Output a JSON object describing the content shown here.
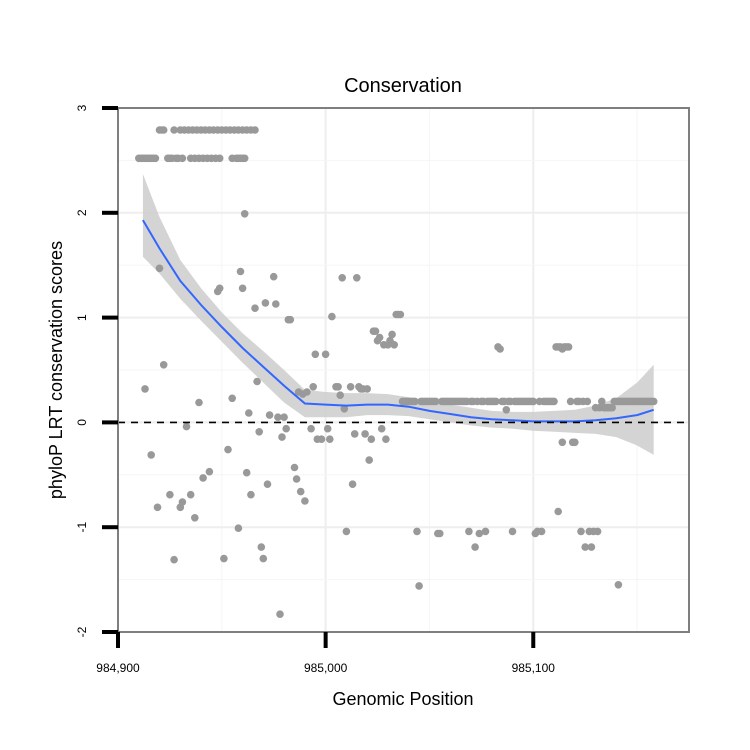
{
  "chart_data": {
    "type": "scatter",
    "title": "Conservation",
    "xlabel": "Genomic Position",
    "ylabel": "phyloP LRT conservation scores",
    "xlim": [
      984900,
      985175
    ],
    "ylim": [
      -2,
      3
    ],
    "x_ticks": [
      984900,
      985000,
      985100
    ],
    "x_tick_labels": [
      "984,900",
      "985,000",
      "985,100"
    ],
    "y_ticks": [
      -2,
      -1,
      0,
      1,
      2,
      3
    ],
    "y_tick_labels": [
      "-2",
      "-1",
      "0",
      "1",
      "2",
      "3"
    ],
    "grid": true,
    "reference_line": {
      "y": 0,
      "style": "dashed"
    },
    "colors": {
      "points": "#999999",
      "smooth_line": "#3366FF",
      "ribbon": "#cccccc",
      "grid_major": "#eeeeee",
      "grid_minor": "#f5f5f5",
      "panel_border": "#7f7f7f",
      "axis_tick": "#000000"
    },
    "series": [
      {
        "name": "points",
        "points": [
          [
            984910,
            2.52
          ],
          [
            984911,
            2.52
          ],
          [
            984912,
            2.52
          ],
          [
            984913,
            2.52
          ],
          [
            984914,
            2.52
          ],
          [
            984915,
            2.52
          ],
          [
            984916,
            2.52
          ],
          [
            984917,
            2.52
          ],
          [
            984918,
            2.52
          ],
          [
            984920,
            2.79
          ],
          [
            984921,
            2.79
          ],
          [
            984922,
            2.79
          ],
          [
            984924,
            2.52
          ],
          [
            984925,
            2.52
          ],
          [
            984926,
            2.52
          ],
          [
            984928,
            2.52
          ],
          [
            984929,
            2.52
          ],
          [
            984931,
            2.52
          ],
          [
            984927,
            2.79
          ],
          [
            984930,
            2.79
          ],
          [
            984932,
            2.79
          ],
          [
            984934,
            2.79
          ],
          [
            984936,
            2.79
          ],
          [
            984938,
            2.79
          ],
          [
            984940,
            2.79
          ],
          [
            984942,
            2.79
          ],
          [
            984935,
            2.52
          ],
          [
            984937,
            2.52
          ],
          [
            984939,
            2.52
          ],
          [
            984941,
            2.52
          ],
          [
            984943,
            2.52
          ],
          [
            984945,
            2.52
          ],
          [
            984947,
            2.52
          ],
          [
            984949,
            2.52
          ],
          [
            984944,
            2.79
          ],
          [
            984946,
            2.79
          ],
          [
            984948,
            2.79
          ],
          [
            984950,
            2.79
          ],
          [
            984952,
            2.79
          ],
          [
            984954,
            2.79
          ],
          [
            984956,
            2.79
          ],
          [
            984958,
            2.79
          ],
          [
            984960,
            2.79
          ],
          [
            984962,
            2.79
          ],
          [
            984964,
            2.79
          ],
          [
            984966,
            2.79
          ],
          [
            984955,
            2.52
          ],
          [
            984957,
            2.52
          ],
          [
            984958,
            2.52
          ],
          [
            984959,
            2.52
          ],
          [
            984960,
            2.52
          ],
          [
            984961,
            2.52
          ],
          [
            984913,
            0.32
          ],
          [
            984916,
            -0.31
          ],
          [
            984919,
            -0.81
          ],
          [
            984920,
            1.47
          ],
          [
            984922,
            0.55
          ],
          [
            984925,
            -0.69
          ],
          [
            984927,
            -1.31
          ],
          [
            984930,
            -0.81
          ],
          [
            984931,
            -0.76
          ],
          [
            984933,
            -0.04
          ],
          [
            984935,
            -0.69
          ],
          [
            984937,
            -0.91
          ],
          [
            984939,
            0.19
          ],
          [
            984941,
            -0.53
          ],
          [
            984944,
            -0.47
          ],
          [
            984948,
            1.25
          ],
          [
            984949,
            1.28
          ],
          [
            984951,
            -1.3
          ],
          [
            984953,
            -0.26
          ],
          [
            984955,
            0.23
          ],
          [
            984958,
            -1.01
          ],
          [
            984959,
            1.44
          ],
          [
            984960,
            1.28
          ],
          [
            984961,
            1.99
          ],
          [
            984962,
            -0.48
          ],
          [
            984963,
            0.09
          ],
          [
            984964,
            -0.69
          ],
          [
            984966,
            1.09
          ],
          [
            984967,
            0.39
          ],
          [
            984968,
            -0.09
          ],
          [
            984969,
            -1.19
          ],
          [
            984970,
            -1.3
          ],
          [
            984971,
            1.14
          ],
          [
            984972,
            -0.59
          ],
          [
            984973,
            0.07
          ],
          [
            984975,
            1.39
          ],
          [
            984976,
            1.13
          ],
          [
            984978,
            -1.83
          ],
          [
            984977,
            0.05
          ],
          [
            984979,
            -0.14
          ],
          [
            984980,
            0.05
          ],
          [
            984981,
            -0.06
          ],
          [
            984982,
            0.98
          ],
          [
            984983,
            0.98
          ],
          [
            984985,
            -0.43
          ],
          [
            984986,
            -0.54
          ],
          [
            984987,
            0.29
          ],
          [
            984988,
            -0.66
          ],
          [
            984989,
            0.27
          ],
          [
            984990,
            -0.75
          ],
          [
            984991,
            0.29
          ],
          [
            984993,
            -0.06
          ],
          [
            984994,
            0.34
          ],
          [
            984995,
            0.65
          ],
          [
            984996,
            -0.16
          ],
          [
            984998,
            -0.16
          ],
          [
            985000,
            0.65
          ],
          [
            985001,
            -0.06
          ],
          [
            985002,
            -0.16
          ],
          [
            985003,
            1.01
          ],
          [
            985005,
            0.34
          ],
          [
            985006,
            0.34
          ],
          [
            985007,
            0.26
          ],
          [
            985008,
            1.38
          ],
          [
            985009,
            0.13
          ],
          [
            985010,
            -1.04
          ],
          [
            985012,
            0.34
          ],
          [
            985013,
            -0.59
          ],
          [
            985014,
            -0.11
          ],
          [
            985015,
            1.38
          ],
          [
            985016,
            0.34
          ],
          [
            985017,
            0.32
          ],
          [
            985018,
            0.32
          ],
          [
            985019,
            -0.11
          ],
          [
            985020,
            0.32
          ],
          [
            985021,
            -0.36
          ],
          [
            985022,
            -0.16
          ],
          [
            985023,
            0.87
          ],
          [
            985024,
            0.87
          ],
          [
            985025,
            0.78
          ],
          [
            985026,
            0.81
          ],
          [
            985027,
            -0.06
          ],
          [
            985028,
            0.74
          ],
          [
            985029,
            -0.16
          ],
          [
            985030,
            0.74
          ],
          [
            985031,
            0.78
          ],
          [
            985032,
            0.84
          ],
          [
            985033,
            0.74
          ],
          [
            985034,
            1.03
          ],
          [
            985035,
            1.03
          ],
          [
            985036,
            1.03
          ],
          [
            985037,
            0.2
          ],
          [
            985038,
            0.2
          ],
          [
            985039,
            0.2
          ],
          [
            985040,
            0.2
          ],
          [
            985041,
            0.2
          ],
          [
            985042,
            0.2
          ],
          [
            985043,
            0.2
          ],
          [
            985044,
            -1.04
          ],
          [
            985045,
            -1.56
          ],
          [
            985046,
            0.2
          ],
          [
            985047,
            0.2
          ],
          [
            985048,
            0.2
          ],
          [
            985049,
            0.2
          ],
          [
            985050,
            0.2
          ],
          [
            985051,
            0.2
          ],
          [
            985052,
            0.2
          ],
          [
            985053,
            0.2
          ],
          [
            985054,
            -1.06
          ],
          [
            985055,
            -1.06
          ],
          [
            985056,
            0.2
          ],
          [
            985057,
            0.2
          ],
          [
            985058,
            0.2
          ],
          [
            985059,
            0.2
          ],
          [
            985060,
            0.2
          ],
          [
            985061,
            0.2
          ],
          [
            985062,
            0.2
          ],
          [
            985063,
            0.2
          ],
          [
            985064,
            0.2
          ],
          [
            985065,
            0.2
          ],
          [
            985066,
            0.2
          ],
          [
            985067,
            0.2
          ],
          [
            985068,
            0.2
          ],
          [
            985069,
            -1.04
          ],
          [
            985070,
            0.2
          ],
          [
            985071,
            0.2
          ],
          [
            985072,
            -1.19
          ],
          [
            985073,
            0.2
          ],
          [
            985074,
            -1.06
          ],
          [
            985075,
            0.2
          ],
          [
            985076,
            0.2
          ],
          [
            985077,
            -1.04
          ],
          [
            985078,
            0.2
          ],
          [
            985079,
            0.2
          ],
          [
            985080,
            0.2
          ],
          [
            985081,
            0.2
          ],
          [
            985082,
            0.2
          ],
          [
            985083,
            0.72
          ],
          [
            985084,
            0.7
          ],
          [
            985085,
            0.2
          ],
          [
            985086,
            0.2
          ],
          [
            985087,
            0.12
          ],
          [
            985088,
            0.2
          ],
          [
            985089,
            0.2
          ],
          [
            985090,
            -1.04
          ],
          [
            985091,
            0.2
          ],
          [
            985092,
            0.2
          ],
          [
            985093,
            0.2
          ],
          [
            985094,
            0.2
          ],
          [
            985095,
            0.2
          ],
          [
            985096,
            0.2
          ],
          [
            985097,
            0.2
          ],
          [
            985098,
            0.2
          ],
          [
            985099,
            0.2
          ],
          [
            985100,
            0.2
          ],
          [
            985101,
            -1.06
          ],
          [
            985102,
            -1.04
          ],
          [
            985103,
            0.2
          ],
          [
            985104,
            -1.04
          ],
          [
            985105,
            0.2
          ],
          [
            985106,
            0.2
          ],
          [
            985107,
            0.2
          ],
          [
            985108,
            0.2
          ],
          [
            985109,
            0.2
          ],
          [
            985110,
            0.2
          ],
          [
            985111,
            0.72
          ],
          [
            985112,
            0.72
          ],
          [
            985113,
            0.72
          ],
          [
            985114,
            0.7
          ],
          [
            985115,
            0.72
          ],
          [
            985116,
            0.72
          ],
          [
            985117,
            0.72
          ],
          [
            985118,
            0.2
          ],
          [
            985112,
            -0.85
          ],
          [
            985114,
            -0.19
          ],
          [
            985119,
            -0.19
          ],
          [
            985120,
            -0.19
          ],
          [
            985121,
            0.2
          ],
          [
            985122,
            0.2
          ],
          [
            985123,
            -1.04
          ],
          [
            985124,
            0.2
          ],
          [
            985125,
            -1.19
          ],
          [
            985126,
            0.2
          ],
          [
            985127,
            -1.04
          ],
          [
            985128,
            -1.19
          ],
          [
            985129,
            -1.04
          ],
          [
            985130,
            0.14
          ],
          [
            985131,
            -1.04
          ],
          [
            985132,
            0.14
          ],
          [
            985133,
            0.2
          ],
          [
            985134,
            0.14
          ],
          [
            985135,
            0.14
          ],
          [
            985136,
            0.14
          ],
          [
            985137,
            0.14
          ],
          [
            985138,
            0.14
          ],
          [
            985139,
            0.2
          ],
          [
            985140,
            0.2
          ],
          [
            985141,
            0.2
          ],
          [
            985142,
            0.2
          ],
          [
            985143,
            0.2
          ],
          [
            985144,
            0.2
          ],
          [
            985145,
            0.2
          ],
          [
            985146,
            0.2
          ],
          [
            985147,
            0.2
          ],
          [
            985148,
            0.2
          ],
          [
            985149,
            0.2
          ],
          [
            985150,
            0.2
          ],
          [
            985151,
            0.2
          ],
          [
            985152,
            0.2
          ],
          [
            985153,
            0.2
          ],
          [
            985154,
            0.2
          ],
          [
            985155,
            0.2
          ],
          [
            985156,
            0.2
          ],
          [
            985157,
            0.2
          ],
          [
            985158,
            0.2
          ],
          [
            985141,
            -1.55
          ]
        ]
      },
      {
        "name": "smooth_fit",
        "x": [
          984912,
          984920,
          984930,
          984940,
          984950,
          984960,
          984970,
          984980,
          984990,
          985000,
          985010,
          985020,
          985030,
          985040,
          985050,
          985060,
          985070,
          985080,
          985090,
          985100,
          985110,
          985120,
          985130,
          985140,
          985150,
          985158
        ],
        "y": [
          1.93,
          1.66,
          1.35,
          1.12,
          0.91,
          0.71,
          0.53,
          0.35,
          0.18,
          0.17,
          0.16,
          0.17,
          0.17,
          0.15,
          0.11,
          0.08,
          0.05,
          0.03,
          0.02,
          0.01,
          0.01,
          0.01,
          0.02,
          0.04,
          0.07,
          0.12
        ],
        "lower": [
          1.58,
          1.42,
          1.18,
          0.97,
          0.77,
          0.57,
          0.38,
          0.19,
          0.05,
          0.05,
          0.05,
          0.07,
          0.07,
          0.06,
          0.03,
          0.0,
          -0.03,
          -0.05,
          -0.06,
          -0.08,
          -0.09,
          -0.1,
          -0.11,
          -0.14,
          -0.22,
          -0.31
        ],
        "upper": [
          2.37,
          1.96,
          1.55,
          1.28,
          1.05,
          0.85,
          0.68,
          0.5,
          0.31,
          0.29,
          0.28,
          0.28,
          0.27,
          0.24,
          0.2,
          0.17,
          0.14,
          0.11,
          0.1,
          0.1,
          0.11,
          0.12,
          0.16,
          0.23,
          0.38,
          0.55
        ]
      }
    ]
  }
}
